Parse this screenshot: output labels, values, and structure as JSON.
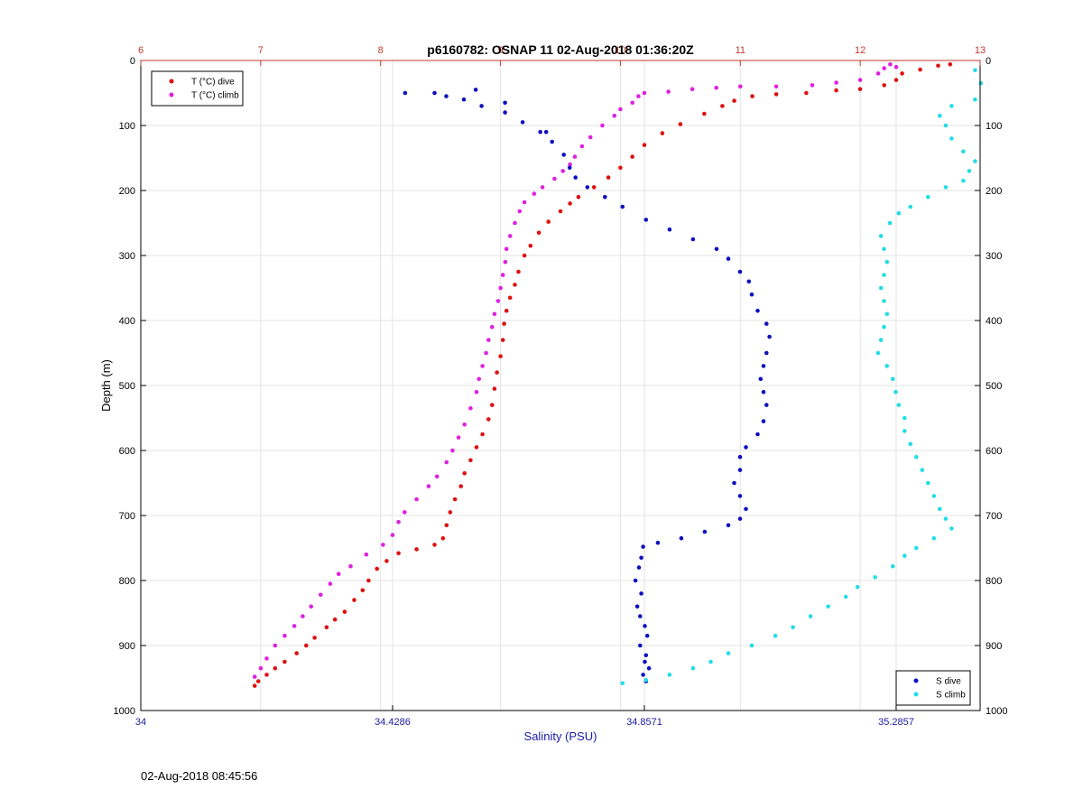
{
  "chart_data": {
    "type": "scatter",
    "title": "p6160782: OSNAP 11 02-Aug-2018 01:36:20Z",
    "ylabel": "Depth (m)",
    "xlabel_bottom": "Salinity (PSU)",
    "ylim": [
      0,
      1000
    ],
    "y_reversed": true,
    "y_ticks": [
      "0",
      "100",
      "200",
      "300",
      "400",
      "500",
      "600",
      "700",
      "800",
      "900",
      "1000"
    ],
    "x_bottom": {
      "range": [
        34,
        35.4286
      ],
      "ticks": [
        "34",
        "34.4286",
        "34.8571",
        "35.2857"
      ],
      "color": "#1a1aa6"
    },
    "x_top": {
      "range": [
        6,
        13
      ],
      "ticks": [
        "6",
        "7",
        "8",
        "9",
        "10",
        "11",
        "12",
        "13"
      ],
      "color": "#c0392b"
    },
    "grid": true,
    "legend_top": {
      "placement": "top-left",
      "entries": [
        "T (°C) dive",
        "T (°C) climb"
      ]
    },
    "legend_bottom": {
      "placement": "bottom-right",
      "entries": [
        "S dive",
        "S climb"
      ]
    },
    "series": [
      {
        "name": "T (°C) dive",
        "axis": "top",
        "color": "#dd1111",
        "points": [
          [
            6.95,
            962
          ],
          [
            6.98,
            955
          ],
          [
            7.05,
            945
          ],
          [
            7.12,
            935
          ],
          [
            7.2,
            925
          ],
          [
            7.3,
            912
          ],
          [
            7.38,
            900
          ],
          [
            7.45,
            888
          ],
          [
            7.55,
            872
          ],
          [
            7.62,
            860
          ],
          [
            7.7,
            848
          ],
          [
            7.78,
            830
          ],
          [
            7.85,
            815
          ],
          [
            7.9,
            800
          ],
          [
            7.97,
            782
          ],
          [
            8.05,
            770
          ],
          [
            8.15,
            758
          ],
          [
            8.3,
            752
          ],
          [
            8.45,
            745
          ],
          [
            8.52,
            735
          ],
          [
            8.55,
            715
          ],
          [
            8.58,
            695
          ],
          [
            8.62,
            675
          ],
          [
            8.67,
            655
          ],
          [
            8.7,
            635
          ],
          [
            8.75,
            615
          ],
          [
            8.8,
            595
          ],
          [
            8.85,
            575
          ],
          [
            8.9,
            552
          ],
          [
            8.93,
            530
          ],
          [
            8.95,
            505
          ],
          [
            8.97,
            480
          ],
          [
            9.0,
            455
          ],
          [
            9.02,
            430
          ],
          [
            9.03,
            405
          ],
          [
            9.05,
            385
          ],
          [
            9.08,
            365
          ],
          [
            9.12,
            345
          ],
          [
            9.15,
            325
          ],
          [
            9.2,
            300
          ],
          [
            9.25,
            285
          ],
          [
            9.32,
            265
          ],
          [
            9.4,
            248
          ],
          [
            9.5,
            232
          ],
          [
            9.58,
            220
          ],
          [
            9.65,
            210
          ],
          [
            9.78,
            195
          ],
          [
            9.9,
            180
          ],
          [
            10.0,
            165
          ],
          [
            10.1,
            148
          ],
          [
            10.2,
            130
          ],
          [
            10.35,
            112
          ],
          [
            10.5,
            98
          ],
          [
            10.7,
            82
          ],
          [
            10.85,
            70
          ],
          [
            10.95,
            62
          ],
          [
            11.1,
            55
          ],
          [
            11.3,
            52
          ],
          [
            11.55,
            50
          ],
          [
            11.8,
            46
          ],
          [
            12.0,
            44
          ],
          [
            12.2,
            38
          ],
          [
            12.3,
            30
          ],
          [
            12.35,
            20
          ],
          [
            12.5,
            14
          ],
          [
            12.65,
            8
          ],
          [
            12.75,
            6
          ]
        ]
      },
      {
        "name": "T (°C) climb",
        "axis": "top",
        "color": "#e020e0",
        "points": [
          [
            6.95,
            948
          ],
          [
            7.0,
            935
          ],
          [
            7.05,
            920
          ],
          [
            7.12,
            900
          ],
          [
            7.2,
            885
          ],
          [
            7.28,
            870
          ],
          [
            7.35,
            855
          ],
          [
            7.42,
            840
          ],
          [
            7.5,
            822
          ],
          [
            7.58,
            805
          ],
          [
            7.65,
            790
          ],
          [
            7.75,
            778
          ],
          [
            7.88,
            760
          ],
          [
            8.02,
            745
          ],
          [
            8.1,
            730
          ],
          [
            8.15,
            710
          ],
          [
            8.2,
            695
          ],
          [
            8.3,
            675
          ],
          [
            8.4,
            655
          ],
          [
            8.47,
            640
          ],
          [
            8.55,
            618
          ],
          [
            8.6,
            600
          ],
          [
            8.65,
            580
          ],
          [
            8.7,
            560
          ],
          [
            8.75,
            535
          ],
          [
            8.8,
            510
          ],
          [
            8.82,
            490
          ],
          [
            8.85,
            470
          ],
          [
            8.88,
            450
          ],
          [
            8.9,
            430
          ],
          [
            8.93,
            410
          ],
          [
            8.95,
            390
          ],
          [
            8.98,
            370
          ],
          [
            9.0,
            350
          ],
          [
            9.02,
            330
          ],
          [
            9.04,
            310
          ],
          [
            9.05,
            290
          ],
          [
            9.08,
            270
          ],
          [
            9.12,
            250
          ],
          [
            9.16,
            232
          ],
          [
            9.2,
            218
          ],
          [
            9.28,
            205
          ],
          [
            9.35,
            195
          ],
          [
            9.45,
            182
          ],
          [
            9.52,
            170
          ],
          [
            9.58,
            160
          ],
          [
            9.62,
            148
          ],
          [
            9.68,
            132
          ],
          [
            9.75,
            118
          ],
          [
            9.85,
            100
          ],
          [
            9.95,
            85
          ],
          [
            10.0,
            75
          ],
          [
            10.1,
            65
          ],
          [
            10.15,
            55
          ],
          [
            10.2,
            50
          ],
          [
            10.4,
            48
          ],
          [
            10.6,
            44
          ],
          [
            10.8,
            42
          ],
          [
            11.0,
            40
          ],
          [
            11.3,
            40
          ],
          [
            11.6,
            38
          ],
          [
            11.8,
            34
          ],
          [
            12.0,
            30
          ],
          [
            12.15,
            20
          ],
          [
            12.2,
            12
          ],
          [
            12.25,
            6
          ],
          [
            12.3,
            10
          ]
        ]
      },
      {
        "name": "S dive",
        "axis": "bottom",
        "color": "#1010c0",
        "points": [
          [
            34.86,
            955
          ],
          [
            34.855,
            945
          ],
          [
            34.865,
            935
          ],
          [
            34.858,
            925
          ],
          [
            34.86,
            915
          ],
          [
            34.85,
            900
          ],
          [
            34.862,
            885
          ],
          [
            34.858,
            870
          ],
          [
            34.85,
            855
          ],
          [
            34.845,
            840
          ],
          [
            34.852,
            820
          ],
          [
            34.842,
            800
          ],
          [
            34.848,
            780
          ],
          [
            34.852,
            765
          ],
          [
            34.855,
            748
          ],
          [
            34.88,
            742
          ],
          [
            34.92,
            735
          ],
          [
            34.96,
            725
          ],
          [
            35.0,
            715
          ],
          [
            35.02,
            705
          ],
          [
            35.03,
            690
          ],
          [
            35.02,
            670
          ],
          [
            35.01,
            650
          ],
          [
            35.02,
            630
          ],
          [
            35.02,
            610
          ],
          [
            35.03,
            595
          ],
          [
            35.05,
            575
          ],
          [
            35.06,
            555
          ],
          [
            35.065,
            530
          ],
          [
            35.06,
            510
          ],
          [
            35.055,
            490
          ],
          [
            35.06,
            470
          ],
          [
            35.065,
            450
          ],
          [
            35.07,
            425
          ],
          [
            35.065,
            405
          ],
          [
            35.05,
            385
          ],
          [
            35.04,
            360
          ],
          [
            35.035,
            340
          ],
          [
            35.02,
            325
          ],
          [
            35.0,
            305
          ],
          [
            34.98,
            290
          ],
          [
            34.94,
            275
          ],
          [
            34.9,
            260
          ],
          [
            34.86,
            245
          ],
          [
            34.82,
            225
          ],
          [
            34.79,
            210
          ],
          [
            34.76,
            195
          ],
          [
            34.74,
            180
          ],
          [
            34.73,
            165
          ],
          [
            34.72,
            145
          ],
          [
            34.7,
            125
          ],
          [
            34.68,
            110
          ],
          [
            34.65,
            95
          ],
          [
            34.62,
            80
          ],
          [
            34.58,
            70
          ],
          [
            34.55,
            60
          ],
          [
            34.52,
            55
          ],
          [
            34.5,
            50
          ],
          [
            34.45,
            50
          ],
          [
            34.57,
            45
          ],
          [
            34.62,
            65
          ],
          [
            34.69,
            110
          ]
        ]
      },
      {
        "name": "S climb",
        "axis": "bottom",
        "color": "#22dde8",
        "points": [
          [
            34.82,
            958
          ],
          [
            34.86,
            953
          ],
          [
            34.9,
            945
          ],
          [
            34.94,
            935
          ],
          [
            34.97,
            925
          ],
          [
            35.0,
            912
          ],
          [
            35.04,
            900
          ],
          [
            35.08,
            885
          ],
          [
            35.11,
            872
          ],
          [
            35.14,
            855
          ],
          [
            35.17,
            840
          ],
          [
            35.2,
            825
          ],
          [
            35.22,
            810
          ],
          [
            35.25,
            795
          ],
          [
            35.28,
            778
          ],
          [
            35.3,
            762
          ],
          [
            35.32,
            750
          ],
          [
            35.35,
            735
          ],
          [
            35.38,
            720
          ],
          [
            35.37,
            705
          ],
          [
            35.36,
            690
          ],
          [
            35.35,
            670
          ],
          [
            35.34,
            650
          ],
          [
            35.33,
            630
          ],
          [
            35.32,
            610
          ],
          [
            35.31,
            590
          ],
          [
            35.3,
            570
          ],
          [
            35.3,
            550
          ],
          [
            35.29,
            530
          ],
          [
            35.285,
            510
          ],
          [
            35.28,
            490
          ],
          [
            35.27,
            470
          ],
          [
            35.255,
            450
          ],
          [
            35.26,
            430
          ],
          [
            35.265,
            410
          ],
          [
            35.27,
            390
          ],
          [
            35.265,
            370
          ],
          [
            35.26,
            350
          ],
          [
            35.265,
            330
          ],
          [
            35.27,
            310
          ],
          [
            35.265,
            290
          ],
          [
            35.26,
            270
          ],
          [
            35.275,
            250
          ],
          [
            35.29,
            235
          ],
          [
            35.31,
            225
          ],
          [
            35.34,
            210
          ],
          [
            35.37,
            195
          ],
          [
            35.4,
            185
          ],
          [
            35.41,
            170
          ],
          [
            35.42,
            155
          ],
          [
            35.4,
            140
          ],
          [
            35.38,
            120
          ],
          [
            35.37,
            100
          ],
          [
            35.36,
            85
          ],
          [
            35.38,
            70
          ],
          [
            35.42,
            60
          ],
          [
            35.43,
            35
          ],
          [
            35.42,
            15
          ]
        ]
      }
    ]
  },
  "footer": {
    "timestamp": "02-Aug-2018 08:45:56"
  }
}
